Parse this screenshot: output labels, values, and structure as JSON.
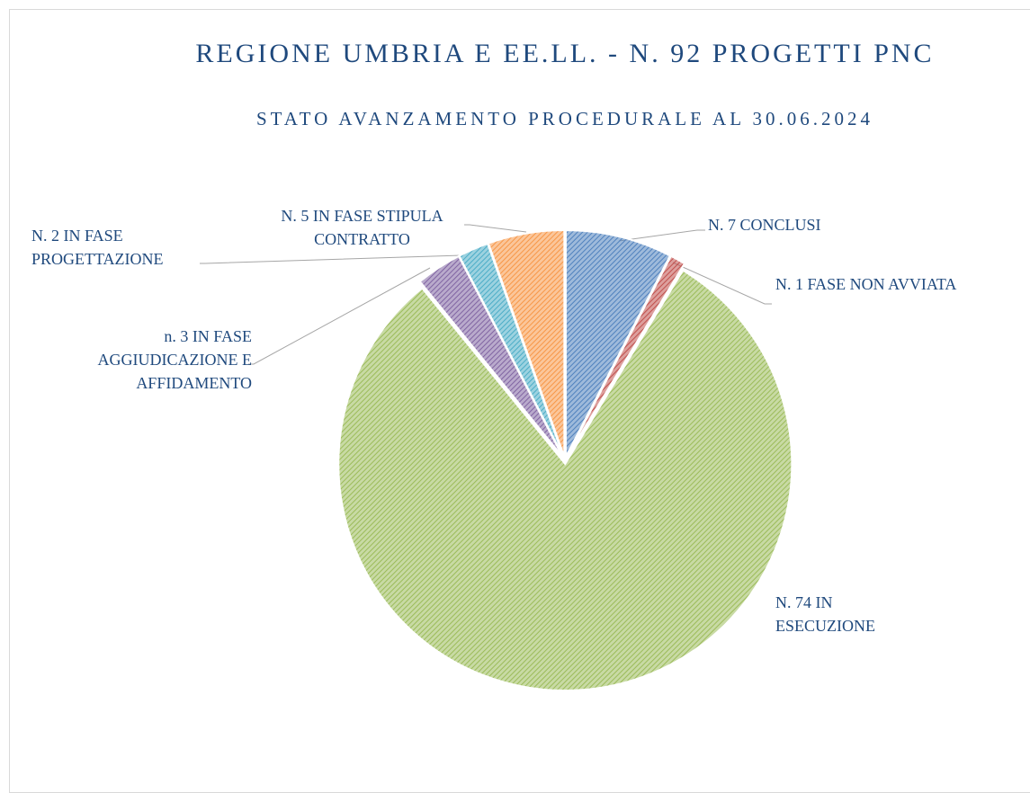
{
  "chart_data": {
    "type": "pie",
    "title": "REGIONE UMBRIA E EE.LL. - N. 92 PROGETTI PNC",
    "subtitle": "STATO AVANZAMENTO PROCEDURALE AL 30.06.2024",
    "categories": [
      "N. 7 CONCLUSI",
      "N. 1 FASE NON AVVIATA",
      "N. 74 IN ESECUZIONE",
      "n. 3 IN FASE AGGIUDICAZIONE E AFFIDAMENTO",
      "N. 2 IN FASE PROGETTAZIONE",
      "N. 5 IN FASE STIPULA CONTRATTO"
    ],
    "values": [
      7,
      1,
      74,
      3,
      2,
      5
    ],
    "colors": [
      "#4f81bd",
      "#c0504d",
      "#9bbb59",
      "#8064a2",
      "#4bacc6",
      "#f79646"
    ]
  }
}
